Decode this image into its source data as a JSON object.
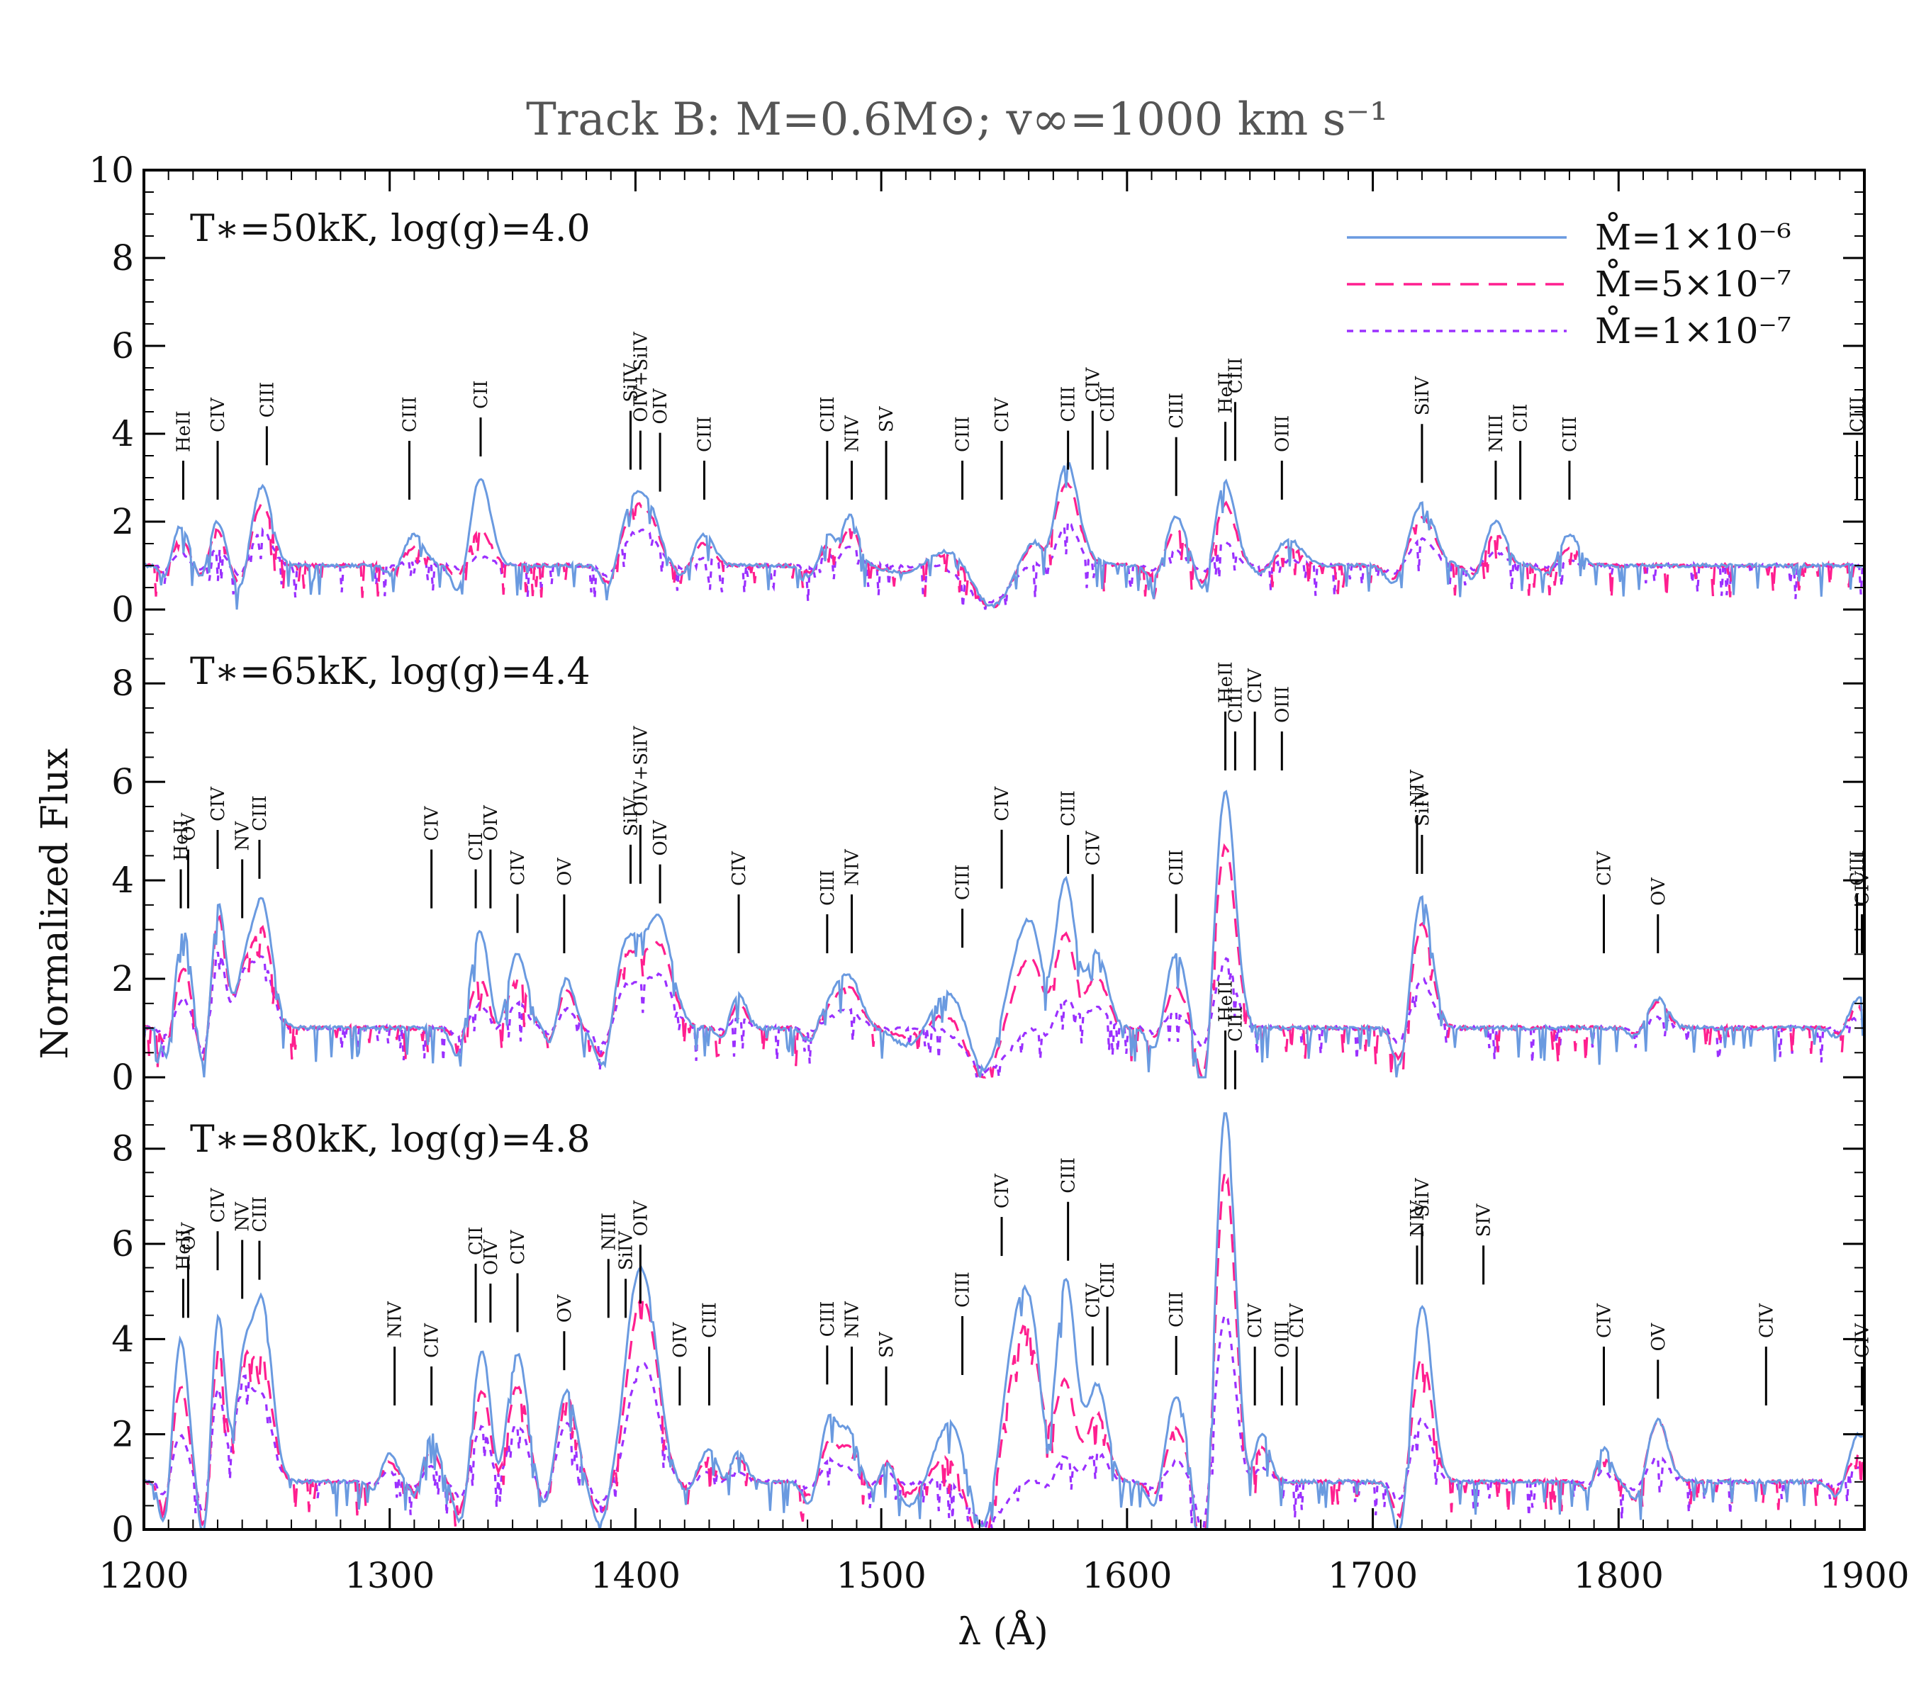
{
  "chart_data": {
    "type": "line",
    "title": "Track B: M=0.6M⊙; v∞=1000 km s⁻¹",
    "xlabel": "λ (Å)",
    "ylabel": "Normalized Flux",
    "xlim": [
      1200,
      1900
    ],
    "xticks": [
      1200,
      1300,
      1400,
      1500,
      1600,
      1700,
      1800,
      1900
    ],
    "legend": {
      "placement": "top-right",
      "entries": [
        {
          "label": "M̊=1×10⁻⁶",
          "color": "#6a9ae0",
          "style": "solid"
        },
        {
          "label": "M̊=5×10⁻⁷",
          "color": "#ff1f8f",
          "style": "dashed"
        },
        {
          "label": "M̊=1×10⁻⁷",
          "color": "#9b30ff",
          "style": "dotted"
        }
      ]
    },
    "panels": [
      {
        "label": "T∗=50kK, log(g)=4.0",
        "ylim": [
          0,
          10
        ],
        "yticks": [
          0,
          2,
          4,
          6,
          8,
          10
        ],
        "continuum": 1.0,
        "features": [
          {
            "x": 1215,
            "h": [
              1.9,
              1.6,
              1.3
            ],
            "w": 3
          },
          {
            "x": 1230,
            "h": [
              2.0,
              1.8,
              1.4
            ],
            "w": 3
          },
          {
            "x": 1248,
            "h": [
              2.8,
              2.4,
              1.8
            ],
            "w": 4
          },
          {
            "x": 1310,
            "h": [
              1.7,
              1.4,
              1.1
            ],
            "w": 4
          },
          {
            "x": 1337,
            "h": [
              3.0,
              1.8,
              1.2
            ],
            "w": 4
          },
          {
            "x": 1398,
            "h": [
              2.7,
              2.4,
              1.8
            ],
            "w": 4
          },
          {
            "x": 1406,
            "h": [
              2.2,
              2.0,
              1.6
            ],
            "w": 4
          },
          {
            "x": 1428,
            "h": [
              1.7,
              1.5,
              1.2
            ],
            "w": 4
          },
          {
            "x": 1480,
            "h": [
              1.9,
              1.6,
              1.3
            ],
            "w": 4
          },
          {
            "x": 1488,
            "h": [
              2.0,
              1.8,
              1.4
            ],
            "w": 3
          },
          {
            "x": 1532,
            "h": [
              1.6,
              1.5,
              1.1
            ],
            "w": 10
          },
          {
            "x": 1568,
            "h": [
              1.9,
              1.8,
              1.2
            ],
            "w": 10
          },
          {
            "x": 1576,
            "h": [
              2.7,
              2.3,
              1.8
            ],
            "w": 4
          },
          {
            "x": 1620,
            "h": [
              2.1,
              1.8,
              1.3
            ],
            "w": 4
          },
          {
            "x": 1640,
            "h": [
              2.9,
              2.4,
              1.5
            ],
            "w": 4
          },
          {
            "x": 1666,
            "h": [
              1.6,
              1.4,
              1.1
            ],
            "w": 5
          },
          {
            "x": 1720,
            "h": [
              2.4,
              2.1,
              1.6
            ],
            "w": 5
          },
          {
            "x": 1750,
            "h": [
              2.0,
              1.7,
              1.3
            ],
            "w": 4
          },
          {
            "x": 1780,
            "h": [
              1.7,
              1.4,
              1.1
            ],
            "w": 4
          }
        ],
        "absorptions": [
          {
            "x": 1543,
            "d": 0.95,
            "w": 9
          }
        ]
      },
      {
        "label": "T∗=65kK, log(g)=4.4",
        "ylim": [
          0,
          9.5
        ],
        "yticks": [
          0,
          2,
          4,
          6,
          8
        ],
        "continuum": 1.0,
        "features": [
          {
            "x": 1216,
            "h": [
              3.0,
              2.2,
              1.6
            ],
            "w": 3
          },
          {
            "x": 1231,
            "h": [
              3.8,
              3.5,
              2.8
            ],
            "w": 3
          },
          {
            "x": 1240,
            "h": [
              2.8,
              2.6,
              2.4
            ],
            "w": 3
          },
          {
            "x": 1248,
            "h": [
              3.6,
              3.0,
              2.4
            ],
            "w": 4
          },
          {
            "x": 1337,
            "h": [
              3.0,
              2.0,
              1.5
            ],
            "w": 4
          },
          {
            "x": 1352,
            "h": [
              2.5,
              2.0,
              1.5
            ],
            "w": 4
          },
          {
            "x": 1372,
            "h": [
              2.0,
              1.8,
              1.4
            ],
            "w": 3
          },
          {
            "x": 1398,
            "h": [
              3.5,
              3.0,
              2.2
            ],
            "w": 5
          },
          {
            "x": 1410,
            "h": [
              3.1,
              2.6,
              2.0
            ],
            "w": 5
          },
          {
            "x": 1442,
            "h": [
              1.7,
              1.5,
              1.2
            ],
            "w": 3
          },
          {
            "x": 1480,
            "h": [
              1.9,
              1.7,
              1.3
            ],
            "w": 4
          },
          {
            "x": 1488,
            "h": [
              1.9,
              1.7,
              1.3
            ],
            "w": 4
          },
          {
            "x": 1532,
            "h": [
              2.2,
              1.6,
              1.1
            ],
            "w": 9
          },
          {
            "x": 1560,
            "h": [
              3.4,
              2.6,
              1.1
            ],
            "w": 9
          },
          {
            "x": 1576,
            "h": [
              3.7,
              2.7,
              1.6
            ],
            "w": 4
          },
          {
            "x": 1588,
            "h": [
              2.5,
              2.0,
              1.4
            ],
            "w": 4
          },
          {
            "x": 1620,
            "h": [
              2.5,
              1.8,
              1.3
            ],
            "w": 4
          },
          {
            "x": 1640,
            "h": [
              5.8,
              4.7,
              2.4
            ],
            "w": 4
          },
          {
            "x": 1720,
            "h": [
              3.7,
              3.1,
              2.0
            ],
            "w": 4
          },
          {
            "x": 1816,
            "h": [
              1.6,
              1.5,
              1.2
            ],
            "w": 4
          },
          {
            "x": 1898,
            "h": [
              1.6,
              1.4,
              1.2
            ],
            "w": 4
          }
        ],
        "absorptions": [
          {
            "x": 1543,
            "d": 1.0,
            "w": 9
          }
        ]
      },
      {
        "label": "T∗=80kK, log(g)=4.8",
        "ylim": [
          0,
          9.5
        ],
        "yticks": [
          0,
          2,
          4,
          6,
          8
        ],
        "continuum": 1.0,
        "features": [
          {
            "x": 1215,
            "h": [
              4.0,
              3.0,
              2.0
            ],
            "w": 3
          },
          {
            "x": 1231,
            "h": [
              5.0,
              4.2,
              3.3
            ],
            "w": 3
          },
          {
            "x": 1240,
            "h": [
              4.4,
              4.0,
              3.5
            ],
            "w": 3
          },
          {
            "x": 1248,
            "h": [
              4.8,
              3.6,
              2.8
            ],
            "w": 4
          },
          {
            "x": 1300,
            "h": [
              1.6,
              1.4,
              1.2
            ],
            "w": 3
          },
          {
            "x": 1317,
            "h": [
              2.0,
              1.7,
              1.3
            ],
            "w": 3
          },
          {
            "x": 1338,
            "h": [
              3.9,
              3.0,
              2.2
            ],
            "w": 4
          },
          {
            "x": 1352,
            "h": [
              3.7,
              3.0,
              2.2
            ],
            "w": 4
          },
          {
            "x": 1372,
            "h": [
              2.9,
              2.8,
              2.2
            ],
            "w": 4
          },
          {
            "x": 1397,
            "h": [
              4.0,
              3.3,
              2.4
            ],
            "w": 5
          },
          {
            "x": 1405,
            "h": [
              4.3,
              4.0,
              3.0
            ],
            "w": 5
          },
          {
            "x": 1430,
            "h": [
              1.7,
              1.5,
              1.2
            ],
            "w": 4
          },
          {
            "x": 1442,
            "h": [
              1.6,
              1.5,
              1.2
            ],
            "w": 3
          },
          {
            "x": 1480,
            "h": [
              2.6,
              2.0,
              1.5
            ],
            "w": 4
          },
          {
            "x": 1488,
            "h": [
              1.8,
              1.6,
              1.2
            ],
            "w": 3
          },
          {
            "x": 1503,
            "h": [
              1.6,
              1.5,
              1.2
            ],
            "w": 3
          },
          {
            "x": 1532,
            "h": [
              2.8,
              1.9,
              1.2
            ],
            "w": 9
          },
          {
            "x": 1558,
            "h": [
              5.3,
              4.5,
              1.2
            ],
            "w": 8
          },
          {
            "x": 1576,
            "h": [
              5.2,
              3.0,
              1.6
            ],
            "w": 4
          },
          {
            "x": 1588,
            "h": [
              3.0,
              2.4,
              1.6
            ],
            "w": 4
          },
          {
            "x": 1620,
            "h": [
              2.8,
              2.1,
              1.4
            ],
            "w": 4
          },
          {
            "x": 1640,
            "h": [
              8.8,
              7.5,
              4.5
            ],
            "w": 4
          },
          {
            "x": 1655,
            "h": [
              2.0,
              1.7,
              1.3
            ],
            "w": 3
          },
          {
            "x": 1720,
            "h": [
              4.7,
              3.6,
              2.3
            ],
            "w": 4
          },
          {
            "x": 1794,
            "h": [
              1.7,
              1.5,
              1.2
            ],
            "w": 3
          },
          {
            "x": 1816,
            "h": [
              2.3,
              2.3,
              1.5
            ],
            "w": 4
          },
          {
            "x": 1898,
            "h": [
              2.0,
              1.6,
              1.3
            ],
            "w": 4
          }
        ],
        "absorptions": [
          {
            "x": 1543,
            "d": 1.0,
            "w": 9
          }
        ]
      }
    ],
    "line_ids": [
      [
        {
          "x": 1216,
          "t": "HeII"
        },
        {
          "x": 1230,
          "t": "CIV"
        },
        {
          "x": 1250,
          "t": "CIII"
        },
        {
          "x": 1308,
          "t": "CIII"
        },
        {
          "x": 1337,
          "t": "CII"
        },
        {
          "x": 1398,
          "t": "SiIV"
        },
        {
          "x": 1402,
          "t": "OIV+SiIV"
        },
        {
          "x": 1410,
          "t": "OIV"
        },
        {
          "x": 1428,
          "t": "CIII"
        },
        {
          "x": 1478,
          "t": "CIII"
        },
        {
          "x": 1488,
          "t": "NIV"
        },
        {
          "x": 1502,
          "t": "SV"
        },
        {
          "x": 1533,
          "t": "CIII"
        },
        {
          "x": 1549,
          "t": "CIV"
        },
        {
          "x": 1576,
          "t": "CIII"
        },
        {
          "x": 1586,
          "t": "CIV"
        },
        {
          "x": 1592,
          "t": "CIII"
        },
        {
          "x": 1620,
          "t": "CIII"
        },
        {
          "x": 1640,
          "t": "HeII"
        },
        {
          "x": 1644,
          "t": "CIII"
        },
        {
          "x": 1663,
          "t": "OIII"
        },
        {
          "x": 1720,
          "t": "SiIV"
        },
        {
          "x": 1750,
          "t": "NIII"
        },
        {
          "x": 1760,
          "t": "CII"
        },
        {
          "x": 1780,
          "t": "CIII"
        },
        {
          "x": 1897,
          "t": "CIII"
        }
      ],
      [
        {
          "x": 1215,
          "t": "HeII"
        },
        {
          "x": 1218,
          "t": "OV"
        },
        {
          "x": 1230,
          "t": "CIV"
        },
        {
          "x": 1240,
          "t": "NV"
        },
        {
          "x": 1247,
          "t": "CIII"
        },
        {
          "x": 1317,
          "t": "CIV"
        },
        {
          "x": 1335,
          "t": "CII"
        },
        {
          "x": 1341,
          "t": "OIV"
        },
        {
          "x": 1352,
          "t": "CIV"
        },
        {
          "x": 1371,
          "t": "OV"
        },
        {
          "x": 1398,
          "t": "SiIV"
        },
        {
          "x": 1402,
          "t": "OIV+SiIV"
        },
        {
          "x": 1410,
          "t": "OIV"
        },
        {
          "x": 1442,
          "t": "CIV"
        },
        {
          "x": 1478,
          "t": "CIII"
        },
        {
          "x": 1488,
          "t": "NIV"
        },
        {
          "x": 1533,
          "t": "CIII"
        },
        {
          "x": 1549,
          "t": "CIV"
        },
        {
          "x": 1576,
          "t": "CIII"
        },
        {
          "x": 1586,
          "t": "CIV"
        },
        {
          "x": 1620,
          "t": "CIII"
        },
        {
          "x": 1640,
          "t": "HeII"
        },
        {
          "x": 1644,
          "t": "CIII"
        },
        {
          "x": 1652,
          "t": "CIV"
        },
        {
          "x": 1663,
          "t": "OIII"
        },
        {
          "x": 1718,
          "t": "NIV"
        },
        {
          "x": 1720,
          "t": "SiIV"
        },
        {
          "x": 1794,
          "t": "CIV"
        },
        {
          "x": 1816,
          "t": "OV"
        },
        {
          "x": 1897,
          "t": "CIII"
        },
        {
          "x": 1899,
          "t": "CIV"
        }
      ],
      [
        {
          "x": 1216,
          "t": "HeII"
        },
        {
          "x": 1218,
          "t": "OV"
        },
        {
          "x": 1230,
          "t": "CIV"
        },
        {
          "x": 1240,
          "t": "NV"
        },
        {
          "x": 1247,
          "t": "CIII"
        },
        {
          "x": 1302,
          "t": "NIV"
        },
        {
          "x": 1317,
          "t": "CIV"
        },
        {
          "x": 1335,
          "t": "CII"
        },
        {
          "x": 1341,
          "t": "OIV"
        },
        {
          "x": 1352,
          "t": "CIV"
        },
        {
          "x": 1371,
          "t": "OV"
        },
        {
          "x": 1389,
          "t": "NIII"
        },
        {
          "x": 1396,
          "t": "SiIV"
        },
        {
          "x": 1402,
          "t": "OIV"
        },
        {
          "x": 1418,
          "t": "OIV"
        },
        {
          "x": 1430,
          "t": "CIII"
        },
        {
          "x": 1478,
          "t": "CIII"
        },
        {
          "x": 1488,
          "t": "NIV"
        },
        {
          "x": 1502,
          "t": "SV"
        },
        {
          "x": 1533,
          "t": "CIII"
        },
        {
          "x": 1549,
          "t": "CIV"
        },
        {
          "x": 1576,
          "t": "CIII"
        },
        {
          "x": 1586,
          "t": "CIV"
        },
        {
          "x": 1592,
          "t": "CIII"
        },
        {
          "x": 1620,
          "t": "CIII"
        },
        {
          "x": 1640,
          "t": "HeII"
        },
        {
          "x": 1644,
          "t": "CIII"
        },
        {
          "x": 1652,
          "t": "CIV"
        },
        {
          "x": 1663,
          "t": "OIII"
        },
        {
          "x": 1669,
          "t": "CIV"
        },
        {
          "x": 1718,
          "t": "NIV"
        },
        {
          "x": 1720,
          "t": "SiIV"
        },
        {
          "x": 1745,
          "t": "SIV"
        },
        {
          "x": 1794,
          "t": "CIV"
        },
        {
          "x": 1816,
          "t": "OV"
        },
        {
          "x": 1860,
          "t": "CIV"
        },
        {
          "x": 1899,
          "t": "CIV"
        }
      ]
    ]
  }
}
